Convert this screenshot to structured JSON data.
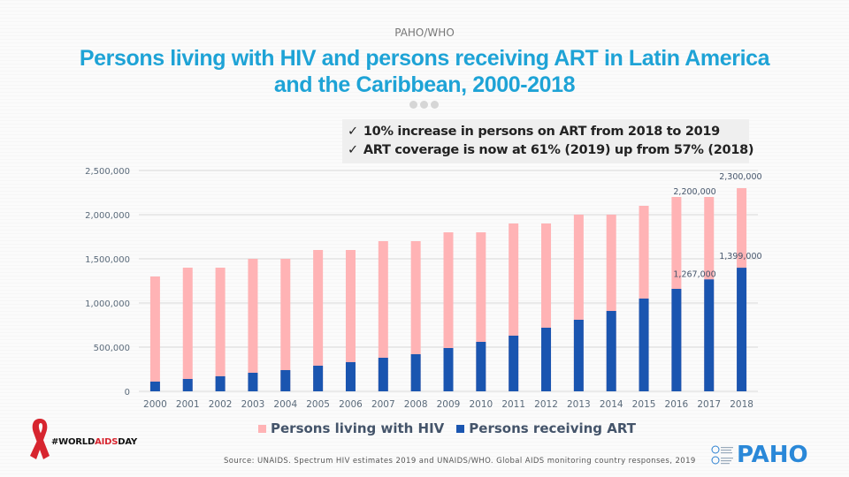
{
  "header": {
    "org": "PAHO/WHO",
    "title_line1": "Persons living with HIV and persons receiving ART in Latin America",
    "title_line2": "and the Caribbean, 2000-2018"
  },
  "callout": {
    "check_glyph": "✓",
    "items": [
      "10% increase in persons on ART from 2018 to 2019",
      "ART coverage is now at 61%  (2019) up from 57% (2018)"
    ]
  },
  "colors": {
    "plhiv": "#ffb3b5",
    "art": "#1a55b0",
    "title": "#1ea3d6"
  },
  "chart_data": {
    "type": "bar",
    "stacking": "overlapped",
    "title": "Persons living with HIV and persons receiving ART in Latin America and the Caribbean, 2000-2018",
    "xlabel": "",
    "ylabel": "",
    "ylim": [
      0,
      2500000
    ],
    "yticks": [
      0,
      500000,
      1000000,
      1500000,
      2000000,
      2500000
    ],
    "ytick_labels": [
      "0",
      "500,000",
      "1,000,000",
      "1,500,000",
      "2,000,000",
      "2,500,000"
    ],
    "grid": true,
    "legend": "bottom",
    "categories": [
      "2000",
      "2001",
      "2002",
      "2003",
      "2004",
      "2005",
      "2006",
      "2007",
      "2008",
      "2009",
      "2010",
      "2011",
      "2012",
      "2013",
      "2014",
      "2015",
      "2016",
      "2017",
      "2018"
    ],
    "series": [
      {
        "name": "Persons living with HIV",
        "color": "#ffb3b5",
        "values": [
          1300000,
          1400000,
          1400000,
          1500000,
          1500000,
          1600000,
          1600000,
          1700000,
          1700000,
          1800000,
          1800000,
          1900000,
          1900000,
          2000000,
          2000000,
          2100000,
          2200000,
          2200000,
          2300000
        ]
      },
      {
        "name": "Persons receiving ART",
        "color": "#1a55b0",
        "values": [
          110000,
          140000,
          170000,
          210000,
          240000,
          290000,
          330000,
          380000,
          420000,
          490000,
          560000,
          630000,
          720000,
          810000,
          910000,
          1050000,
          1160000,
          1267000,
          1399000
        ]
      }
    ],
    "data_labels": [
      {
        "category": "2017",
        "series": "Persons living with HIV",
        "text": "2,200,000"
      },
      {
        "category": "2018",
        "series": "Persons living with HIV",
        "text": "2,300,000"
      },
      {
        "category": "2017",
        "series": "Persons receiving ART",
        "text": "1,267,000"
      },
      {
        "category": "2018",
        "series": "Persons receiving ART",
        "text": "1,399,000"
      }
    ]
  },
  "legend": {
    "items": [
      "Persons living with HIV",
      "Persons receiving ART"
    ]
  },
  "footer": {
    "source": "Source: UNAIDS. Spectrum HIV estimates 2019 and UNAIDS/WHO. Global AIDS monitoring country responses, 2019",
    "campaign_prefix": "#WORLD",
    "campaign_highlight": "AIDS",
    "campaign_suffix": "DAY",
    "paho_logo": "PAHO"
  }
}
